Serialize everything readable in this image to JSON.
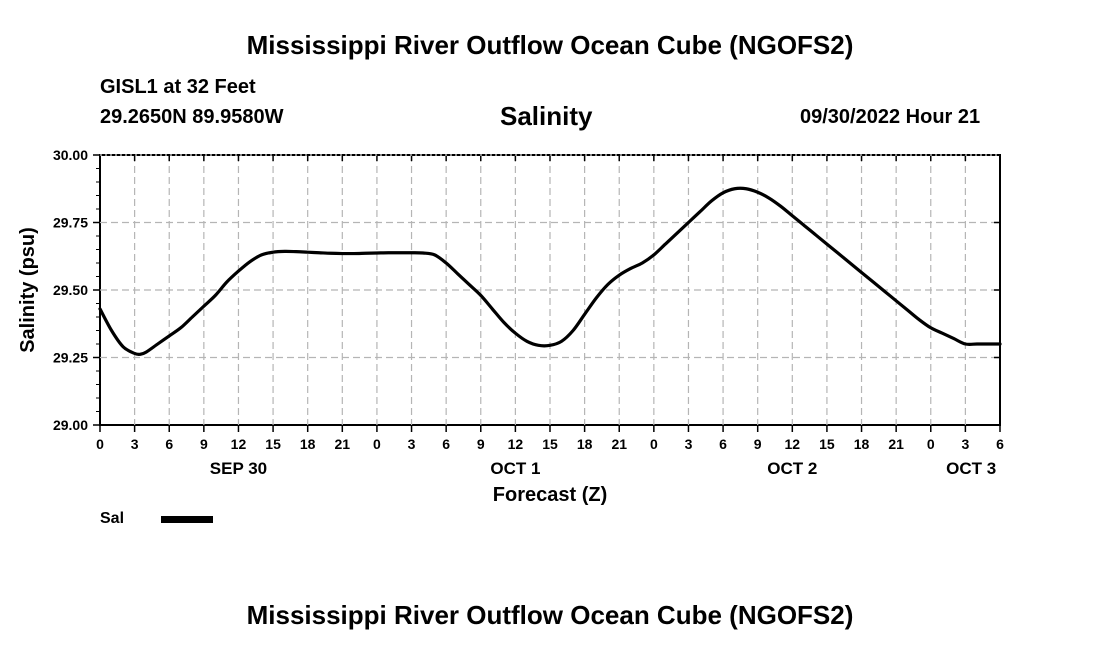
{
  "chart_data": {
    "type": "line",
    "title": "Mississippi River Outflow Ocean Cube (NGOFS2)",
    "station_name": "GISL1 at 32 Feet",
    "station_coords": "29.2650N  89.9580W",
    "plot_title": "Salinity",
    "timestamp": "09/30/2022 Hour 21",
    "ylabel": "Salinity (psu)",
    "xlabel": "Forecast (Z)",
    "ylim": [
      29.0,
      30.0
    ],
    "yticks": [
      "29.00",
      "29.25",
      "29.50",
      "29.75",
      "30.00"
    ],
    "xlim": [
      0,
      78
    ],
    "hour_labels": [
      "0",
      "3",
      "6",
      "9",
      "12",
      "15",
      "18",
      "21",
      "0",
      "3",
      "6",
      "9",
      "12",
      "15",
      "18",
      "21",
      "0",
      "3",
      "6",
      "9",
      "12",
      "15",
      "18",
      "21",
      "0",
      "3",
      "6"
    ],
    "date_labels": [
      {
        "label": "SEP 30",
        "x": 12
      },
      {
        "label": "OCT 1",
        "x": 36
      },
      {
        "label": "OCT 2",
        "x": 60
      },
      {
        "label": "OCT 3",
        "x": 75.5
      }
    ],
    "series": [
      {
        "name": "Sal",
        "color": "#000000",
        "x": [
          0,
          1,
          2,
          3,
          3.5,
          4,
          5,
          6,
          7,
          8,
          9,
          10,
          11,
          12,
          13,
          14,
          15,
          16,
          17,
          18,
          19,
          20,
          21,
          22,
          23,
          24,
          25,
          26,
          27,
          28,
          29,
          30,
          31,
          32,
          33,
          34,
          35,
          36,
          37,
          38,
          39,
          40,
          41,
          42,
          43,
          44,
          45,
          46,
          47,
          48,
          49,
          50,
          51,
          52,
          53,
          54,
          55,
          56,
          57,
          58,
          59,
          60,
          61,
          62,
          63,
          64,
          65,
          66,
          67,
          68,
          69,
          70,
          71,
          72,
          73,
          74,
          75,
          76,
          77,
          78
        ],
        "values": [
          29.43,
          29.35,
          29.29,
          29.265,
          29.262,
          29.27,
          29.3,
          29.33,
          29.36,
          29.4,
          29.44,
          29.48,
          29.53,
          29.57,
          29.605,
          29.63,
          29.64,
          29.643,
          29.642,
          29.64,
          29.638,
          29.636,
          29.635,
          29.635,
          29.636,
          29.637,
          29.638,
          29.638,
          29.638,
          29.637,
          29.63,
          29.6,
          29.56,
          29.52,
          29.48,
          29.43,
          29.38,
          29.34,
          29.31,
          29.295,
          29.295,
          29.31,
          29.35,
          29.41,
          29.47,
          29.52,
          29.555,
          29.58,
          29.6,
          29.63,
          29.67,
          29.71,
          29.75,
          29.79,
          29.83,
          29.86,
          29.875,
          29.875,
          29.862,
          29.84,
          29.81,
          29.775,
          29.74,
          29.705,
          29.67,
          29.635,
          29.6,
          29.565,
          29.53,
          29.495,
          29.46,
          29.425,
          29.39,
          29.36,
          29.34,
          29.32,
          29.3,
          29.3,
          29.3,
          29.3
        ]
      }
    ],
    "legend_label": "Sal",
    "footer_title": "Mississippi River Outflow Ocean Cube (NGOFS2)"
  }
}
